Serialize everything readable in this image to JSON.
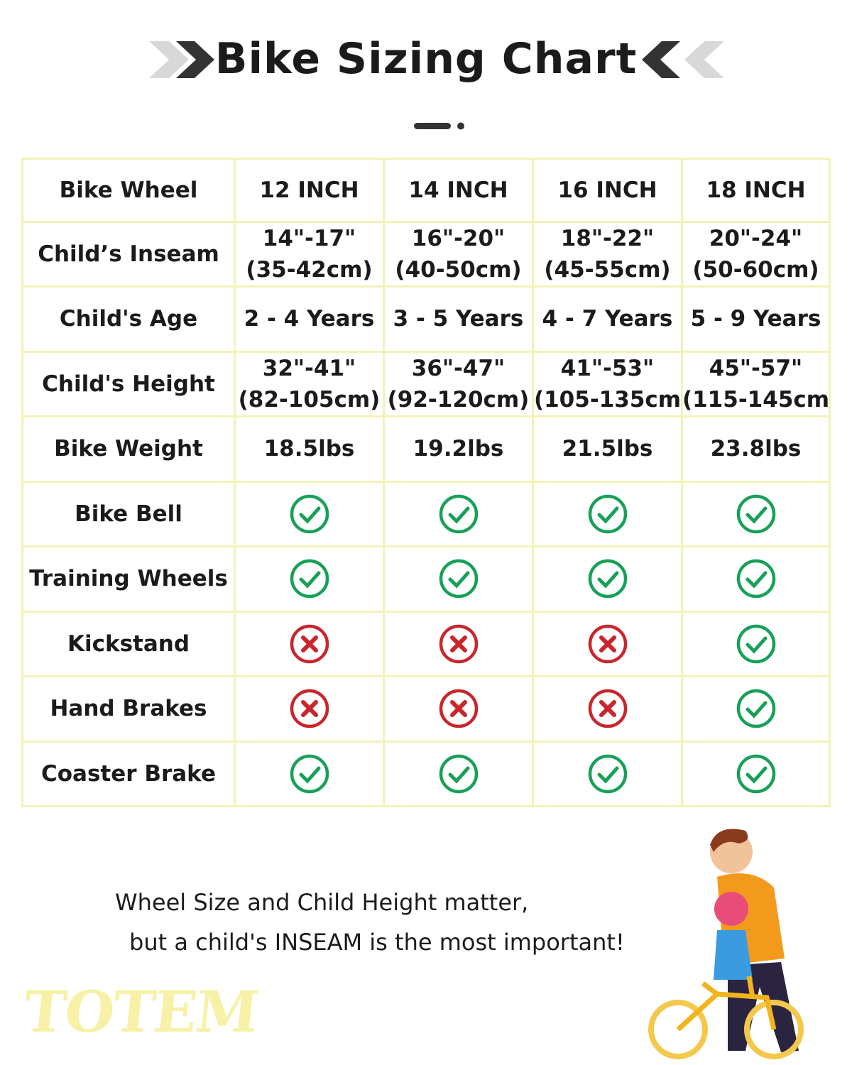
{
  "header": {
    "title": "Bike Sizing Chart"
  },
  "table": {
    "columns": [
      "Bike Wheel",
      "12 INCH",
      "14 INCH",
      "16 INCH",
      "18 INCH"
    ],
    "rows": [
      [
        "Child’s Inseam",
        [
          "14\"-17\"",
          "(35-42cm)"
        ],
        [
          "16\"-20\"",
          "(40-50cm)"
        ],
        [
          "18\"-22\"",
          "(45-55cm)"
        ],
        [
          "20\"-24\"",
          "(50-60cm)"
        ]
      ],
      [
        "Child's Age",
        [
          "2 - 4 Years"
        ],
        [
          "3 - 5 Years"
        ],
        [
          "4 - 7 Years"
        ],
        [
          "5 - 9 Years"
        ]
      ],
      [
        "Child's Height",
        [
          "32\"-41\"",
          "(82-105cm)"
        ],
        [
          "36\"-47\"",
          "(92-120cm)"
        ],
        [
          "41\"-53\"",
          "(105-135cm"
        ],
        [
          "45\"-57\"",
          "(115-145cm"
        ]
      ],
      [
        "Bike Weight",
        [
          "18.5lbs"
        ],
        [
          "19.2lbs"
        ],
        [
          "21.5lbs"
        ],
        [
          "23.8lbs"
        ]
      ]
    ],
    "features": [
      {
        "label": "Bike Bell",
        "available": [
          true,
          true,
          true,
          true
        ]
      },
      {
        "label": "Training Wheels",
        "available": [
          true,
          true,
          true,
          true
        ]
      },
      {
        "label": "Kickstand",
        "available": [
          false,
          false,
          false,
          true
        ]
      },
      {
        "label": "Hand Brakes",
        "available": [
          false,
          false,
          false,
          true
        ]
      },
      {
        "label": "Coaster Brake",
        "available": [
          true,
          true,
          true,
          true
        ]
      }
    ]
  },
  "footer": {
    "lines": [
      "Wheel Size and Child Height matter,",
      "but a child's INSEAM is the most important!"
    ]
  },
  "logo": "TOTEM"
}
